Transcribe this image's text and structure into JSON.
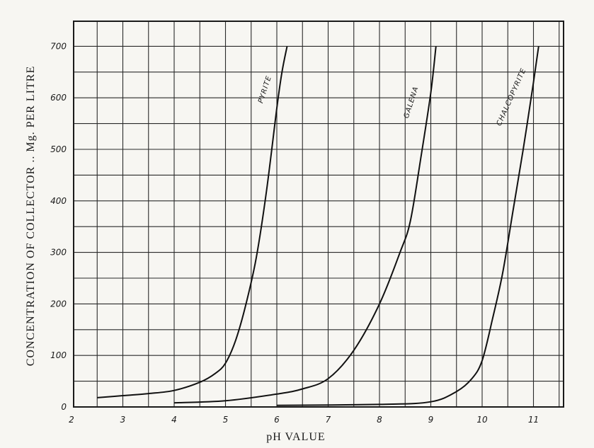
{
  "chart_data": {
    "type": "line",
    "title": "",
    "xlabel": "pH VALUE",
    "ylabel": "CONCENTRATION OF COLLECTOR .. Mg. PER LITRE",
    "xlim": [
      2,
      11.5
    ],
    "ylim": [
      0,
      700
    ],
    "x_ticks": [
      "2",
      "3",
      "4",
      "5",
      "6",
      "7",
      "8",
      "9",
      "10",
      "11"
    ],
    "y_ticks": [
      "0",
      "100",
      "200",
      "300",
      "400",
      "500",
      "600",
      "700"
    ],
    "grid": true,
    "series": [
      {
        "name": "PYRITE",
        "x": [
          2.5,
          3.0,
          3.5,
          4.0,
          4.5,
          4.8,
          5.0,
          5.2,
          5.4,
          5.6,
          5.8,
          6.0,
          6.1,
          6.2
        ],
        "y": [
          18,
          22,
          26,
          32,
          48,
          65,
          85,
          130,
          200,
          290,
          420,
          580,
          650,
          700
        ]
      },
      {
        "name": "GALENA",
        "x": [
          4.0,
          5.0,
          6.0,
          6.5,
          7.0,
          7.5,
          8.0,
          8.4,
          8.6,
          8.8,
          9.0,
          9.1
        ],
        "y": [
          8,
          12,
          25,
          35,
          55,
          110,
          200,
          300,
          360,
          480,
          610,
          700
        ]
      },
      {
        "name": "CHALCOPYRITE",
        "x": [
          6.0,
          8.0,
          9.0,
          9.5,
          9.8,
          10.0,
          10.2,
          10.4,
          10.6,
          10.8,
          11.0,
          11.1
        ],
        "y": [
          3,
          5,
          10,
          30,
          55,
          90,
          170,
          260,
          380,
          500,
          630,
          700
        ]
      }
    ]
  }
}
